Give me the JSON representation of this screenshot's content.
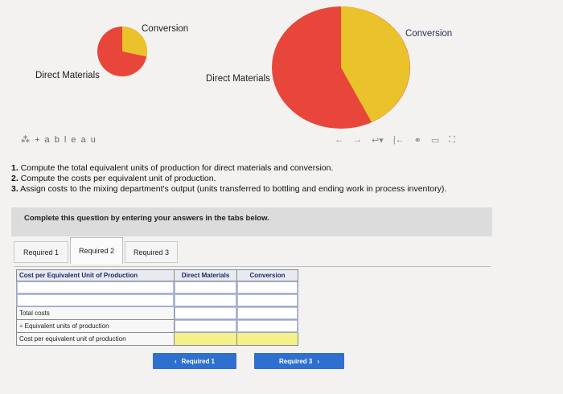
{
  "pies": [
    {
      "label_conversion": "Conversion",
      "label_direct": "Direct Materials"
    },
    {
      "label_conversion": "Conversion",
      "label_direct": "Direct Materials"
    }
  ],
  "colors": {
    "red": "#e8463a",
    "yellow": "#e9c22c",
    "blue": "#2f6fd0"
  },
  "toolbar": {
    "logo": "+ a b l e a u",
    "icons": [
      "undo-icon",
      "redo-icon",
      "revert-icon",
      "reset-icon",
      "share-icon",
      "comment-icon",
      "fullscreen-icon"
    ]
  },
  "instructions": [
    {
      "num": "1.",
      "text": "Compute the total equivalent units of production for direct materials and conversion."
    },
    {
      "num": "2.",
      "text": "Compute the costs per equivalent unit of production."
    },
    {
      "num": "3.",
      "text": "Assign costs to the mixing department's output (units transferred to bottling and ending work in process inventory)."
    }
  ],
  "banner": "Complete this question by entering your answers in the tabs below.",
  "tabs": [
    "Required 1",
    "Required 2",
    "Required 3"
  ],
  "active_tab": "Required 2",
  "table": {
    "headers": [
      "Cost per Equivalent Unit of Production",
      "Direct Materials",
      "Conversion"
    ],
    "rows": [
      {
        "label": "",
        "dm": "",
        "conv": ""
      },
      {
        "label": "",
        "dm": "",
        "conv": ""
      },
      {
        "label": "Total costs",
        "dm": "",
        "conv": ""
      },
      {
        "label": "÷ Equivalent units of production",
        "dm": "",
        "conv": ""
      },
      {
        "label": "Cost per equivalent unit of production",
        "dm": "",
        "conv": ""
      }
    ]
  },
  "nav": {
    "prev": "Required 1",
    "next": "Required 3"
  }
}
